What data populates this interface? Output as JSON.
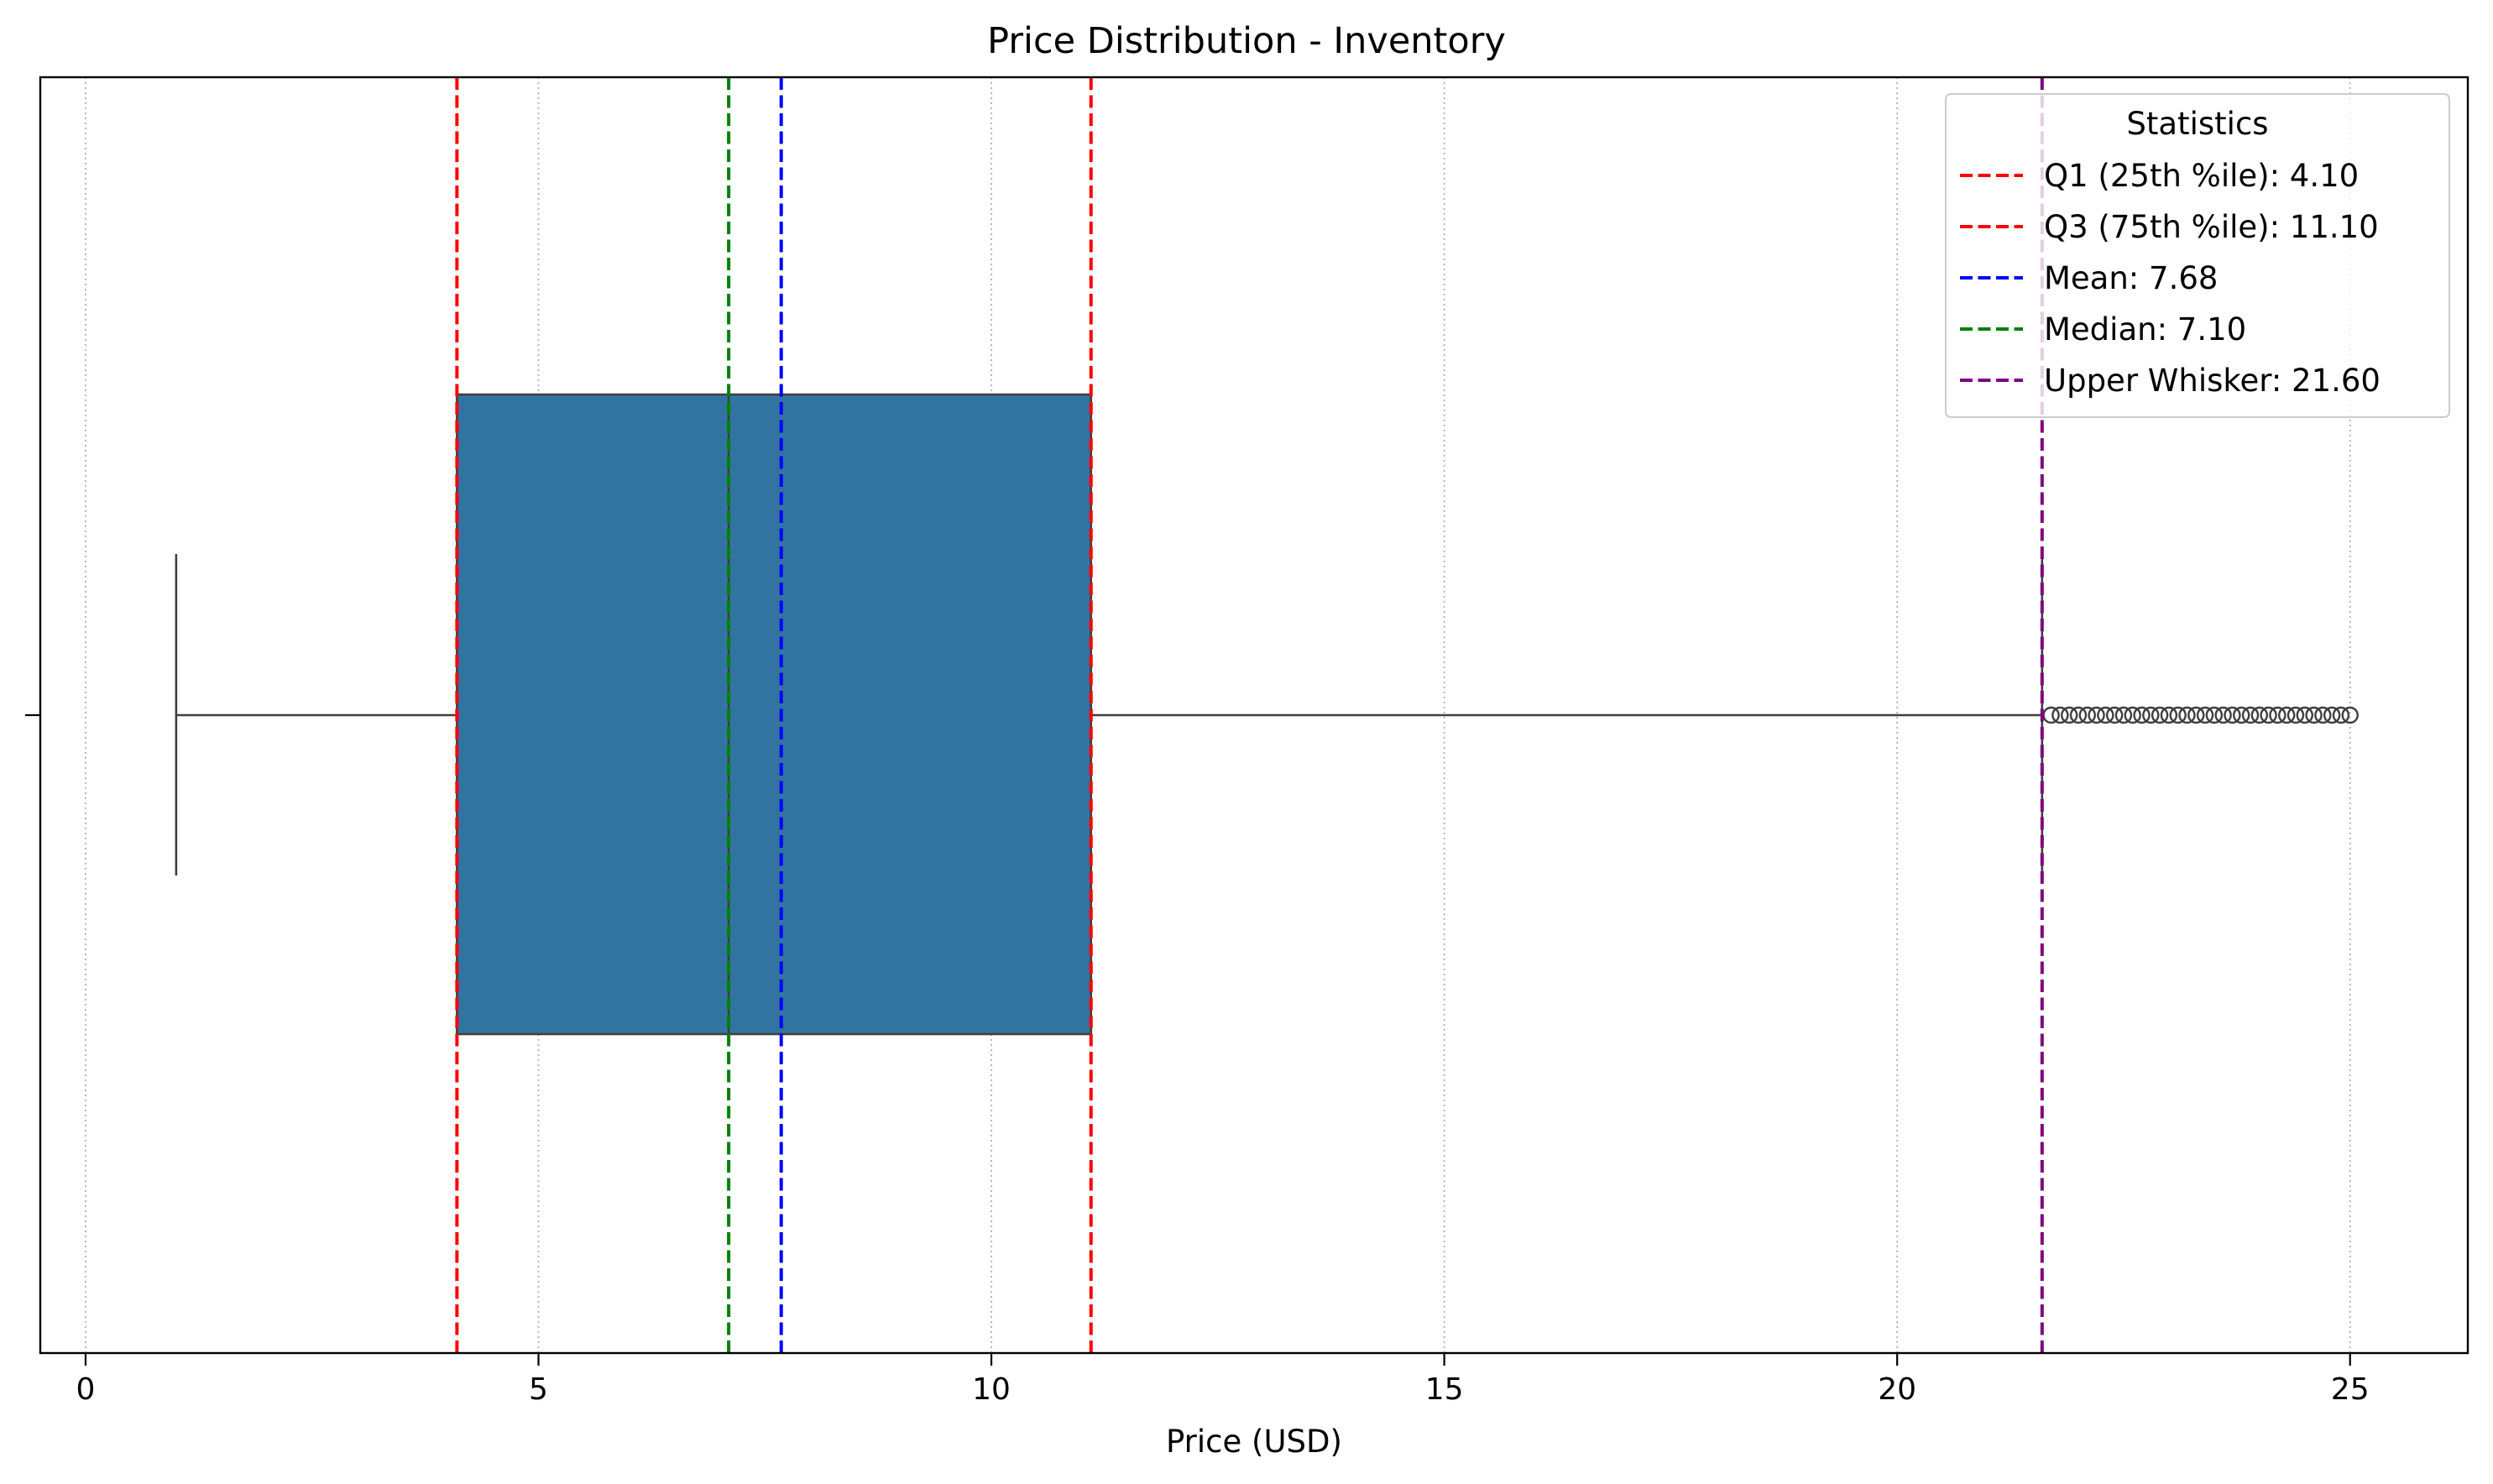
{
  "chart_data": {
    "type": "box",
    "title": "Price Distribution - Inventory",
    "xlabel": "Price (USD)",
    "ylabel": "",
    "xlim": [
      -0.5,
      26.3
    ],
    "xticks": [
      0,
      5,
      10,
      15,
      20,
      25
    ],
    "xtick_labels": [
      "0",
      "5",
      "10",
      "15",
      "20",
      "25"
    ],
    "grid": {
      "x": true,
      "y": false,
      "style": "dotted"
    },
    "box": {
      "min_whisker": 1.0,
      "q1": 4.1,
      "median": 7.1,
      "q3": 11.1,
      "max_whisker": 21.6,
      "color": "#3274a1",
      "outliers": [
        21.7,
        21.8,
        21.9,
        22.0,
        22.1,
        22.2,
        22.3,
        22.4,
        22.5,
        22.6,
        22.7,
        22.8,
        22.9,
        23.0,
        23.1,
        23.2,
        23.3,
        23.4,
        23.5,
        23.6,
        23.7,
        23.8,
        23.9,
        24.0,
        24.1,
        24.2,
        24.3,
        24.4,
        24.5,
        24.6,
        24.7,
        24.8,
        24.9,
        25.0
      ]
    },
    "reference_lines": [
      {
        "label": "Q1 (25th %ile): 4.10",
        "value": 4.1,
        "color": "#ff0000"
      },
      {
        "label": "Q3 (75th %ile): 11.10",
        "value": 11.1,
        "color": "#ff0000"
      },
      {
        "label": "Mean: 7.68",
        "value": 7.68,
        "color": "#0000ff"
      },
      {
        "label": "Median: 7.10",
        "value": 7.1,
        "color": "#008000"
      },
      {
        "label": "Upper Whisker: 21.60",
        "value": 21.6,
        "color": "#800080"
      }
    ],
    "legend": {
      "title": "Statistics",
      "position": "top-right"
    }
  }
}
